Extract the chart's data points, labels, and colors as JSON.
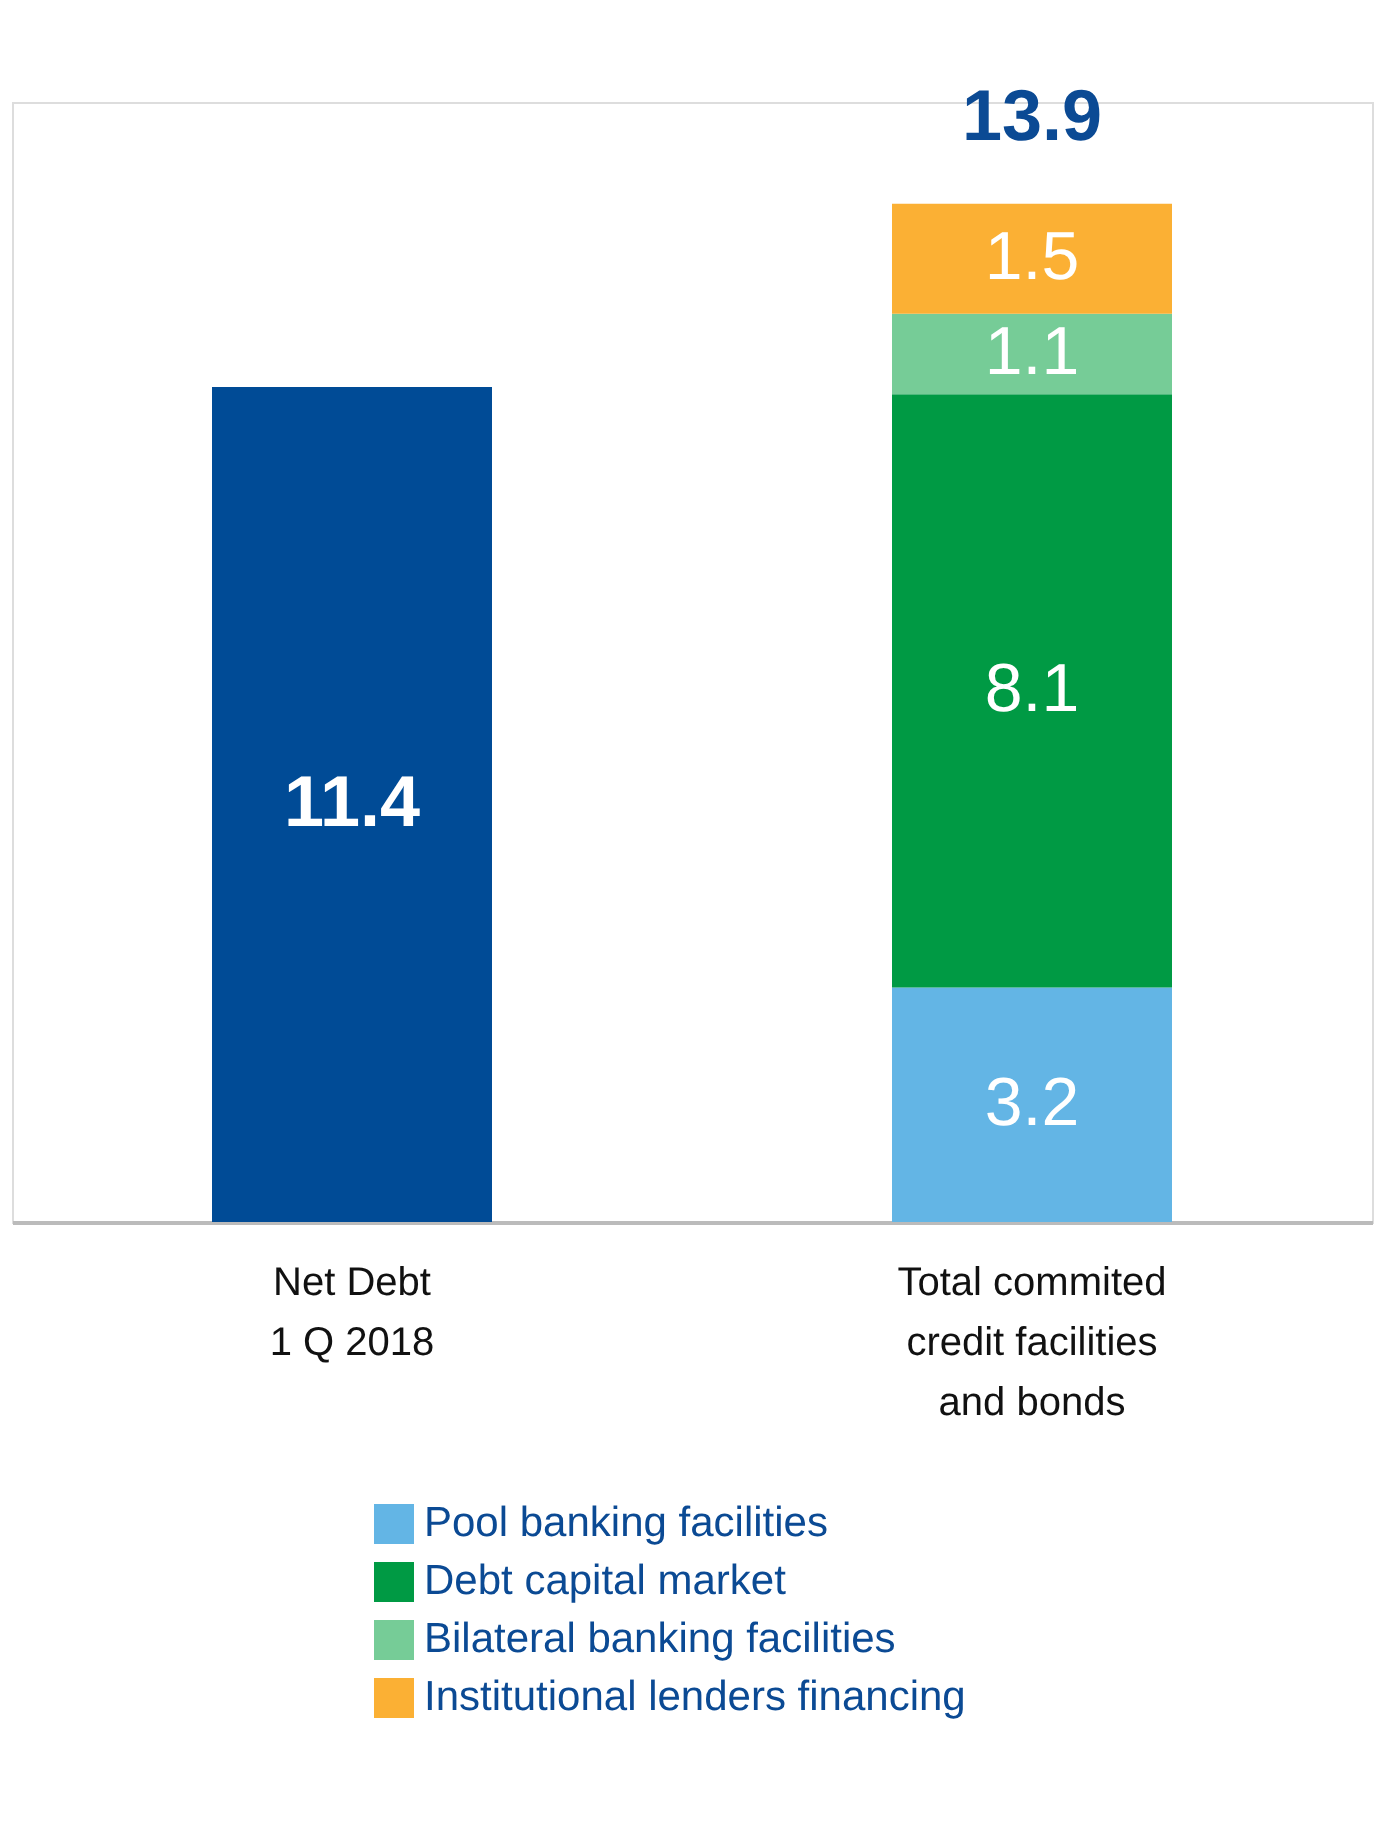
{
  "chart_data": {
    "type": "bar",
    "stacked": true,
    "data_labels": true,
    "legend": "bottom",
    "categories": [
      "Net Debt\n1 Q 2018",
      "Total commited\ncredit facilities\nand bonds"
    ],
    "series": [
      {
        "color": "#004b96",
        "values": [
          11.4,
          null
        ]
      },
      {
        "name": "Pool banking facilities",
        "color": "#63b5e5",
        "values": [
          null,
          3.2
        ]
      },
      {
        "name": "Debt capital market",
        "color": "#009a44",
        "values": [
          null,
          8.1
        ]
      },
      {
        "name": "Bilateral banking facilities",
        "color": "#76cc97",
        "values": [
          null,
          1.1
        ]
      },
      {
        "name": "Institutional lenders financing",
        "color": "#fbb034",
        "values": [
          null,
          1.5
        ]
      }
    ],
    "totals": [
      null,
      "13.9"
    ]
  }
}
